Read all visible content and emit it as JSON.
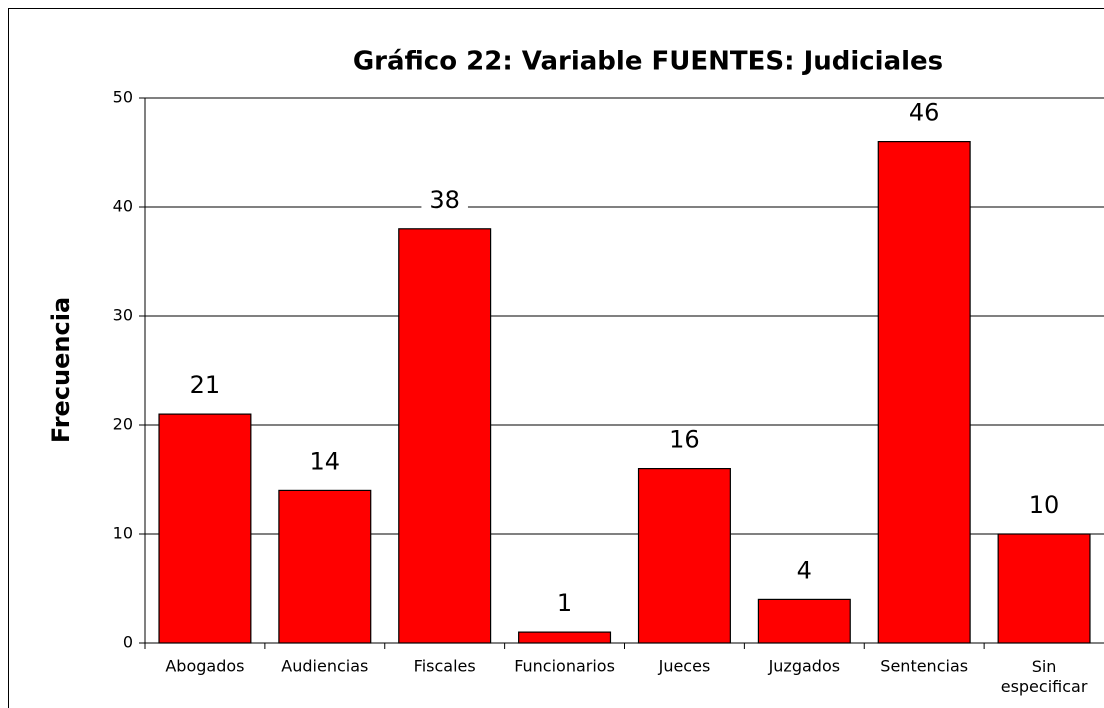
{
  "chart_data": {
    "type": "bar",
    "title": "Gráfico 22: Variable FUENTES: Judiciales",
    "ylabel": "Frecuencia",
    "categories": [
      "Abogados",
      "Audiencias",
      "Fiscales",
      "Funcionarios",
      "Jueces",
      "Juzgados",
      "Sentencias",
      "Sin especificar"
    ],
    "values": [
      21,
      14,
      38,
      1,
      16,
      4,
      46,
      10
    ],
    "color": "#ff0000",
    "ylim": [
      0,
      50
    ],
    "yticks": [
      0,
      10,
      20,
      30,
      40,
      50
    ],
    "grid": true
  }
}
